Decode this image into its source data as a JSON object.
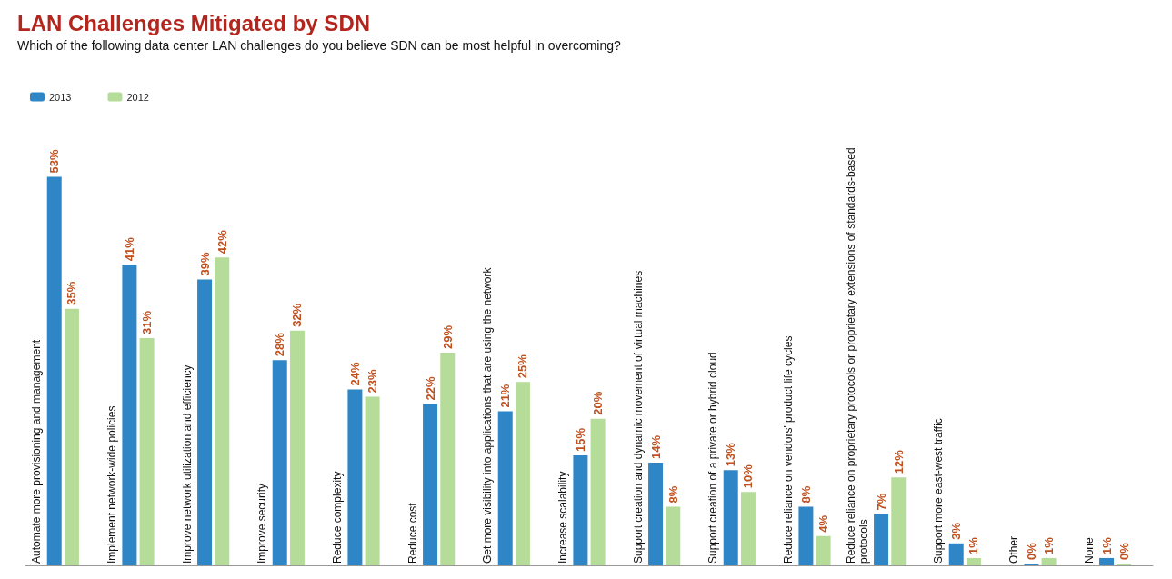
{
  "chart_data": {
    "type": "bar",
    "title": "LAN Challenges Mitigated by SDN",
    "subtitle": "Which of the following data center LAN challenges do you believe SDN can be most helpful in overcoming?",
    "categories": [
      "Automate more provisioning and management",
      "Implement network-wide policies",
      "Improve network utilization and efficiency",
      "Improve security",
      "Reduce complexity",
      "Reduce cost",
      "Get more visibility into applications that are using the network",
      "Increase scalability",
      "Support creation and dynamic movement of virtual machines",
      "Support creation of a private or hybrid cloud",
      "Reduce reliance on vendors' product life cycles",
      "Reduce reliance on proprietary protocols or proprietary extensions of standards-based protocols",
      "Support more east-west traffic",
      "Other",
      "None"
    ],
    "series": [
      {
        "name": "2013",
        "color": "#2f86c6",
        "values": [
          53,
          41,
          39,
          28,
          24,
          22,
          21,
          15,
          14,
          13,
          8,
          7,
          3,
          0,
          1
        ],
        "value_labels": [
          "53%",
          "41%",
          "39%",
          "28%",
          "24%",
          "22%",
          "21%",
          "15%",
          "14%",
          "13%",
          "8%",
          "7%",
          "3%",
          "0%",
          "1%"
        ]
      },
      {
        "name": "2012",
        "color": "#b5dc98",
        "values": [
          35,
          31,
          42,
          32,
          23,
          29,
          25,
          20,
          8,
          10,
          4,
          12,
          1,
          1,
          0
        ],
        "value_labels": [
          "35%",
          "31%",
          "42%",
          "32%",
          "23%",
          "29%",
          "25%",
          "20%",
          "8%",
          "10%",
          "4%",
          "12%",
          "1%",
          "1%",
          "0%"
        ]
      }
    ],
    "legend": "top left",
    "grid": false
  }
}
